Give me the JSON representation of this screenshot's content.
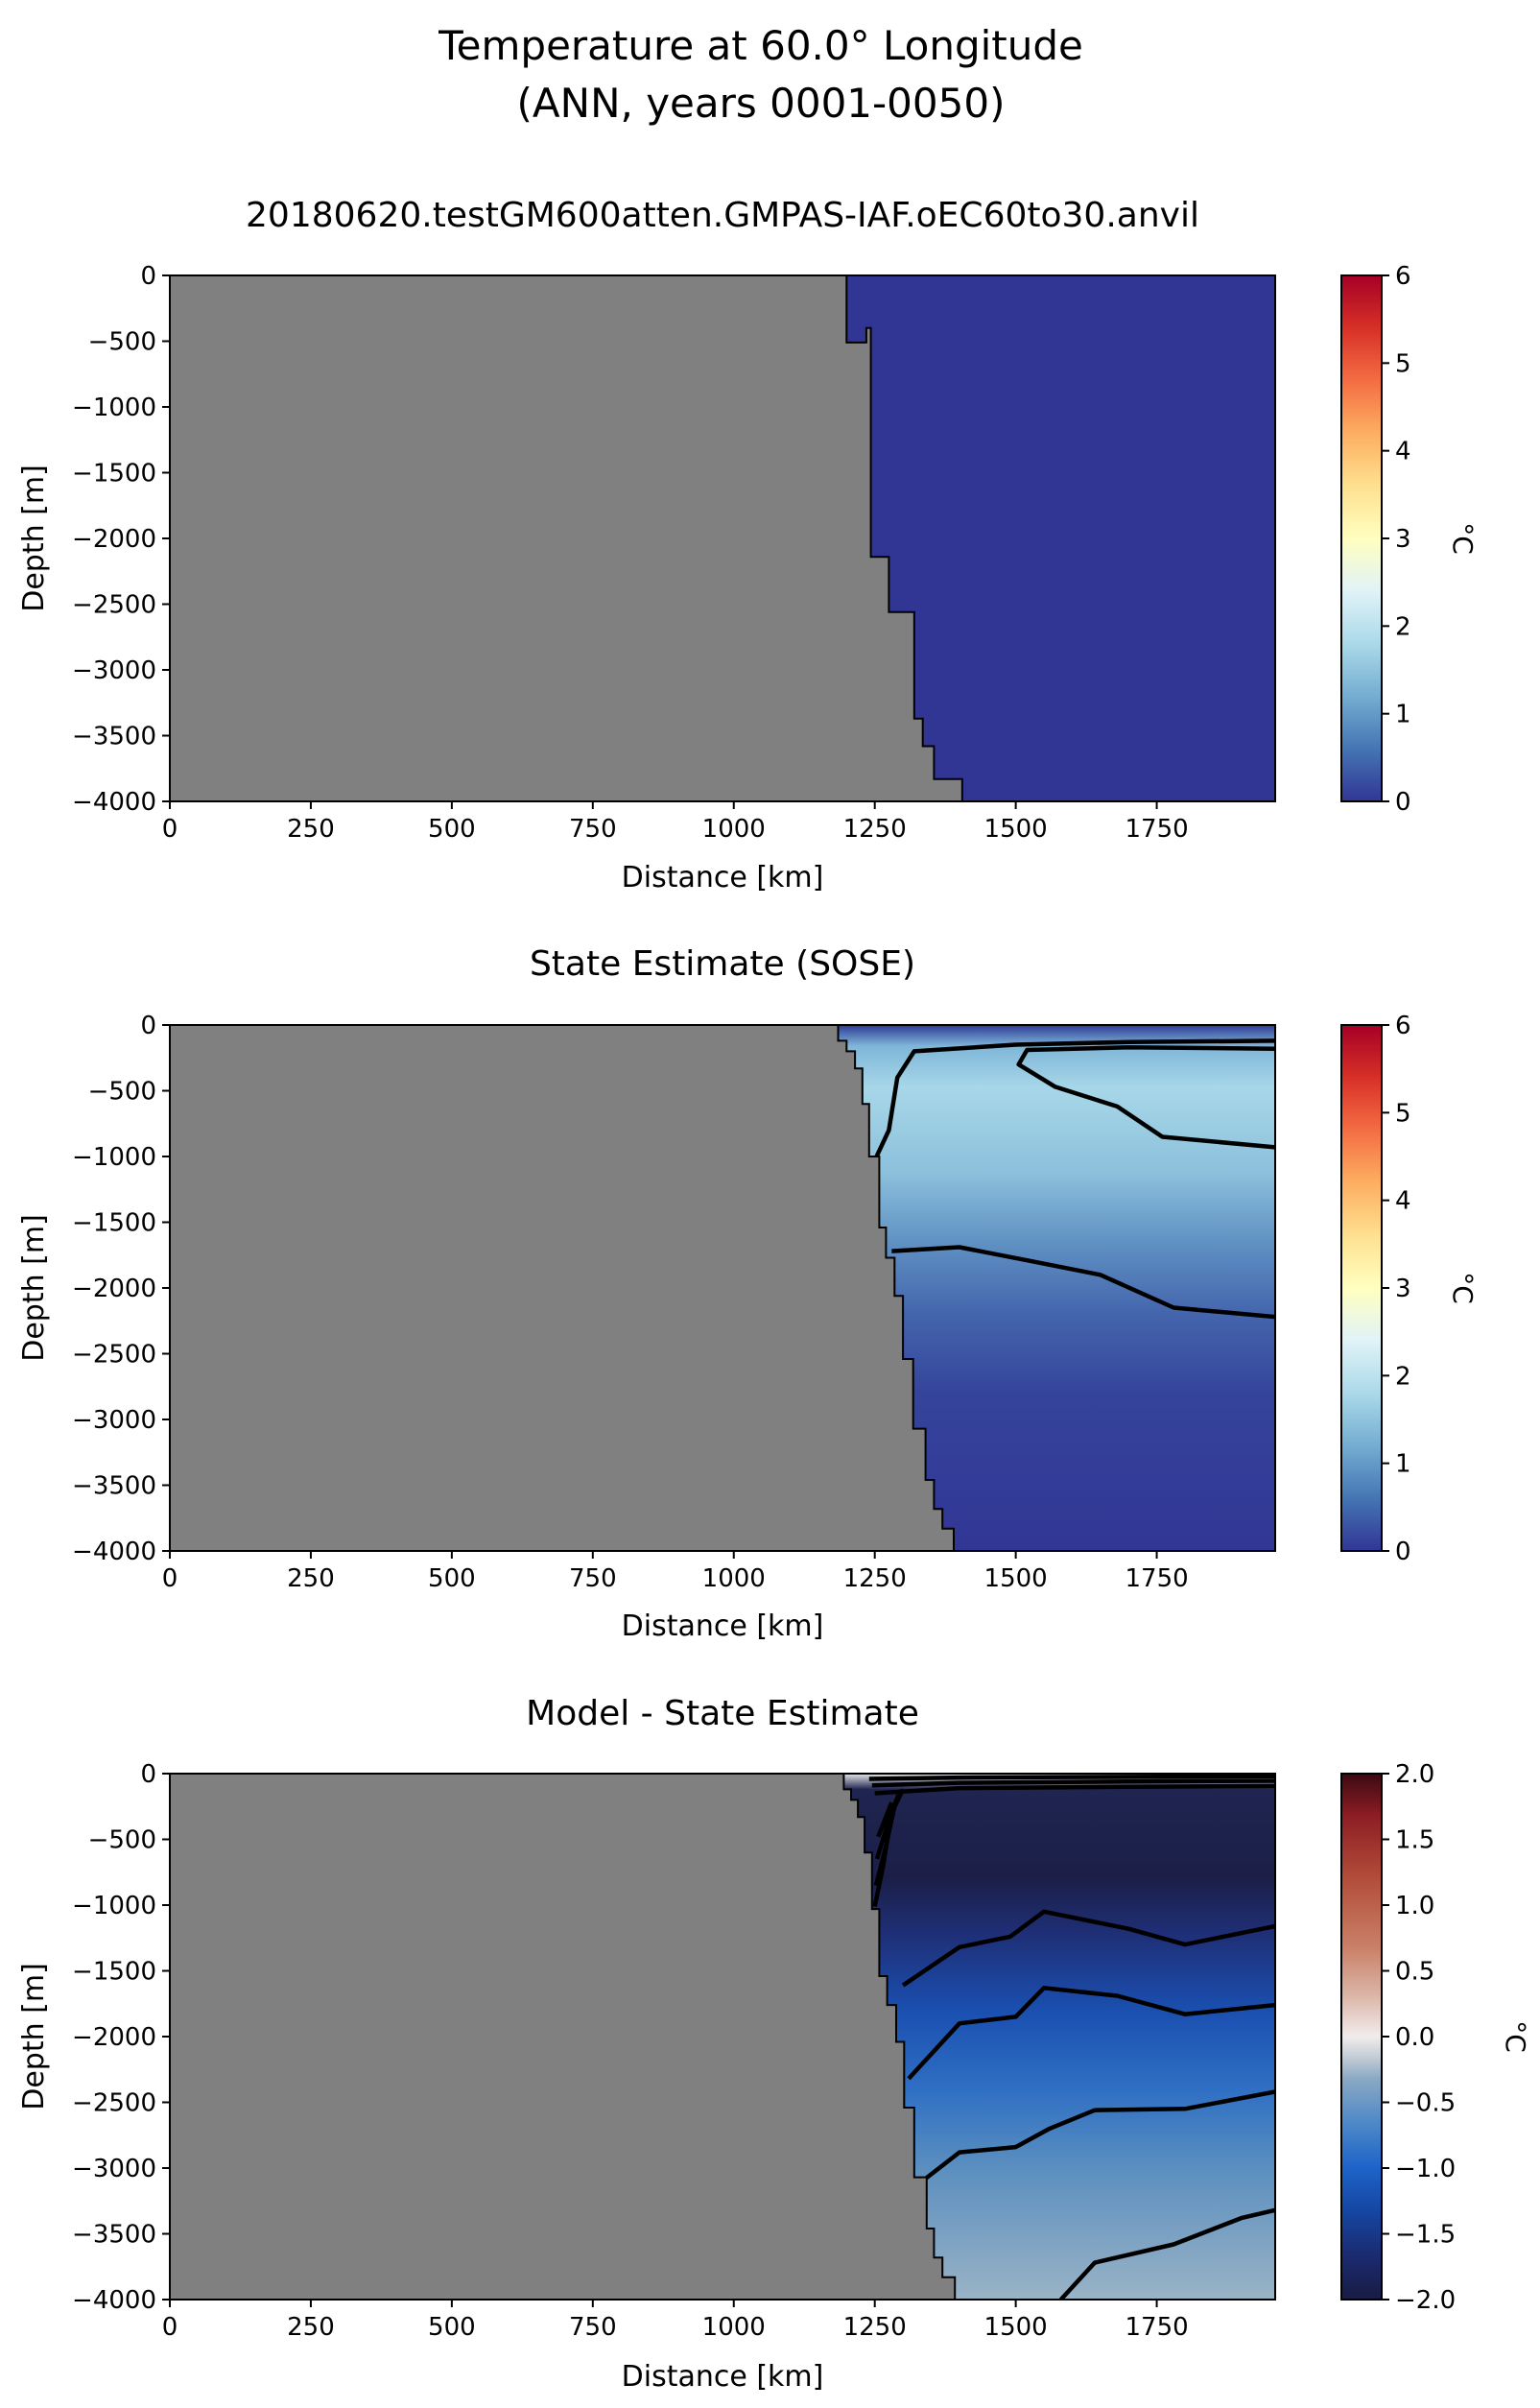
{
  "figure": {
    "title_line1": "Temperature at 60.0° Longitude",
    "title_line2": "(ANN, years 0001-0050)"
  },
  "chart_data": [
    {
      "type": "heatmap",
      "title": "20180620.testGM600atten.GMPAS-IAF.oEC60to30.anvil",
      "xlabel": "Distance [km]",
      "ylabel": "Depth [m]",
      "xlim": [
        0,
        1960
      ],
      "ylim": [
        -4000,
        0
      ],
      "x_ticks": [
        0,
        250,
        500,
        750,
        1000,
        1250,
        1500,
        1750
      ],
      "y_ticks": [
        0,
        -500,
        -1000,
        -1500,
        -2000,
        -2500,
        -3000,
        -3500,
        -4000
      ],
      "land_color": "#808080",
      "field_color_uniform": "#313695",
      "bathymetry": [
        [
          1200,
          0
        ],
        [
          1200,
          -510
        ],
        [
          1235,
          -510
        ],
        [
          1235,
          -400
        ],
        [
          1243,
          -400
        ],
        [
          1243,
          -2140
        ],
        [
          1275,
          -2140
        ],
        [
          1275,
          -2560
        ],
        [
          1320,
          -2560
        ],
        [
          1320,
          -3370
        ],
        [
          1335,
          -3370
        ],
        [
          1335,
          -3580
        ],
        [
          1355,
          -3580
        ],
        [
          1355,
          -3830
        ],
        [
          1405,
          -3830
        ],
        [
          1405,
          -4000
        ]
      ],
      "colorbar": {
        "label": "°C",
        "min": 0,
        "max": 6,
        "ticks": [
          0,
          1,
          2,
          3,
          4,
          5,
          6
        ],
        "colormap": "RdYlBu_r",
        "stops": [
          "#313695",
          "#4575b4",
          "#74add1",
          "#abd9e9",
          "#e0f3f8",
          "#ffffbf",
          "#fee090",
          "#fdae61",
          "#f46d43",
          "#d73027",
          "#a50026"
        ]
      }
    },
    {
      "type": "heatmap",
      "title": "State Estimate (SOSE)",
      "xlabel": "Distance [km]",
      "ylabel": "Depth [m]",
      "xlim": [
        0,
        1960
      ],
      "ylim": [
        -4000,
        0
      ],
      "x_ticks": [
        0,
        250,
        500,
        750,
        1000,
        1250,
        1500,
        1750
      ],
      "y_ticks": [
        0,
        -500,
        -1000,
        -1500,
        -2000,
        -2500,
        -3000,
        -3500,
        -4000
      ],
      "land_color": "#808080",
      "bathymetry": [
        [
          1185,
          0
        ],
        [
          1185,
          -120
        ],
        [
          1200,
          -120
        ],
        [
          1200,
          -200
        ],
        [
          1215,
          -200
        ],
        [
          1215,
          -330
        ],
        [
          1228,
          -330
        ],
        [
          1228,
          -600
        ],
        [
          1240,
          -600
        ],
        [
          1240,
          -1000
        ],
        [
          1258,
          -1000
        ],
        [
          1258,
          -1540
        ],
        [
          1270,
          -1540
        ],
        [
          1270,
          -1770
        ],
        [
          1285,
          -1770
        ],
        [
          1285,
          -2060
        ],
        [
          1300,
          -2060
        ],
        [
          1300,
          -2540
        ],
        [
          1318,
          -2540
        ],
        [
          1318,
          -3070
        ],
        [
          1340,
          -3070
        ],
        [
          1340,
          -3460
        ],
        [
          1355,
          -3460
        ],
        [
          1355,
          -3680
        ],
        [
          1370,
          -3680
        ],
        [
          1370,
          -3830
        ],
        [
          1390,
          -3830
        ],
        [
          1390,
          -4000
        ],
        [
          1445,
          -4000
        ]
      ],
      "contours": [
        [
          [
            1250,
            -1030
          ],
          [
            1275,
            -800
          ],
          [
            1290,
            -400
          ],
          [
            1320,
            -200
          ],
          [
            1500,
            -150
          ],
          [
            1700,
            -130
          ],
          [
            1960,
            -120
          ]
        ],
        [
          [
            1960,
            -180
          ],
          [
            1700,
            -170
          ],
          [
            1520,
            -190
          ],
          [
            1505,
            -300
          ],
          [
            1570,
            -470
          ],
          [
            1680,
            -620
          ],
          [
            1760,
            -850
          ],
          [
            1960,
            -930
          ]
        ],
        [
          [
            1280,
            -1720
          ],
          [
            1400,
            -1690
          ],
          [
            1520,
            -1790
          ],
          [
            1650,
            -1900
          ],
          [
            1780,
            -2150
          ],
          [
            1960,
            -2220
          ]
        ]
      ],
      "colorbar": {
        "label": "°C",
        "min": 0,
        "max": 6,
        "ticks": [
          0,
          1,
          2,
          3,
          4,
          5,
          6
        ],
        "colormap": "RdYlBu_r",
        "stops": [
          "#313695",
          "#4575b4",
          "#74add1",
          "#abd9e9",
          "#e0f3f8",
          "#ffffbf",
          "#fee090",
          "#fdae61",
          "#f46d43",
          "#d73027",
          "#a50026"
        ]
      }
    },
    {
      "type": "heatmap",
      "title": "Model - State Estimate",
      "xlabel": "Distance [km]",
      "ylabel": "Depth [m]",
      "xlim": [
        0,
        1960
      ],
      "ylim": [
        -4000,
        0
      ],
      "x_ticks": [
        0,
        250,
        500,
        750,
        1000,
        1250,
        1500,
        1750
      ],
      "y_ticks": [
        0,
        -500,
        -1000,
        -1500,
        -2000,
        -2500,
        -3000,
        -3500,
        -4000
      ],
      "land_color": "#808080",
      "bathymetry": [
        [
          1195,
          0
        ],
        [
          1195,
          -120
        ],
        [
          1208,
          -120
        ],
        [
          1208,
          -200
        ],
        [
          1220,
          -200
        ],
        [
          1220,
          -330
        ],
        [
          1232,
          -330
        ],
        [
          1232,
          -600
        ],
        [
          1245,
          -600
        ],
        [
          1245,
          -1030
        ],
        [
          1258,
          -1030
        ],
        [
          1258,
          -1540
        ],
        [
          1272,
          -1540
        ],
        [
          1272,
          -1760
        ],
        [
          1288,
          -1760
        ],
        [
          1288,
          -2040
        ],
        [
          1302,
          -2040
        ],
        [
          1302,
          -2540
        ],
        [
          1320,
          -2540
        ],
        [
          1320,
          -3070
        ],
        [
          1342,
          -3070
        ],
        [
          1342,
          -3460
        ],
        [
          1355,
          -3460
        ],
        [
          1355,
          -3680
        ],
        [
          1370,
          -3680
        ],
        [
          1370,
          -3830
        ],
        [
          1392,
          -3830
        ],
        [
          1392,
          -4000
        ],
        [
          1445,
          -4000
        ]
      ],
      "contours": [
        [
          [
            1240,
            -40
          ],
          [
            1400,
            -30
          ],
          [
            1700,
            -25
          ],
          [
            1960,
            -20
          ]
        ],
        [
          [
            1245,
            -90
          ],
          [
            1400,
            -70
          ],
          [
            1700,
            -60
          ],
          [
            1960,
            -55
          ]
        ],
        [
          [
            1250,
            -150
          ],
          [
            1400,
            -110
          ],
          [
            1700,
            -100
          ],
          [
            1960,
            -95
          ]
        ],
        [
          [
            1250,
            -1010
          ],
          [
            1265,
            -700
          ],
          [
            1280,
            -300
          ],
          [
            1300,
            -120
          ]
        ],
        [
          [
            1252,
            -850
          ],
          [
            1270,
            -550
          ],
          [
            1285,
            -250
          ]
        ],
        [
          [
            1254,
            -650
          ],
          [
            1275,
            -350
          ],
          [
            1292,
            -160
          ]
        ],
        [
          [
            1256,
            -480
          ],
          [
            1280,
            -220
          ]
        ],
        [
          [
            1300,
            -1610
          ],
          [
            1400,
            -1320
          ],
          [
            1490,
            -1240
          ],
          [
            1550,
            -1050
          ],
          [
            1700,
            -1180
          ],
          [
            1800,
            -1300
          ],
          [
            1960,
            -1160
          ]
        ],
        [
          [
            1310,
            -2320
          ],
          [
            1400,
            -1900
          ],
          [
            1500,
            -1850
          ],
          [
            1550,
            -1630
          ],
          [
            1680,
            -1690
          ],
          [
            1800,
            -1830
          ],
          [
            1960,
            -1760
          ]
        ],
        [
          [
            1340,
            -3080
          ],
          [
            1400,
            -2880
          ],
          [
            1500,
            -2840
          ],
          [
            1560,
            -2700
          ],
          [
            1640,
            -2560
          ],
          [
            1800,
            -2550
          ],
          [
            1960,
            -2420
          ]
        ],
        [
          [
            1580,
            -4000
          ],
          [
            1640,
            -3720
          ],
          [
            1780,
            -3580
          ],
          [
            1900,
            -3380
          ],
          [
            1960,
            -3320
          ]
        ]
      ],
      "colorbar": {
        "label": "°C",
        "min": -2.0,
        "max": 2.0,
        "ticks": [
          -2.0,
          -1.5,
          -1.0,
          -0.5,
          0.0,
          0.5,
          1.0,
          1.5,
          2.0
        ],
        "colormap": "balance",
        "stops": [
          "#181c43",
          "#1b2a6e",
          "#1547a3",
          "#1e63c9",
          "#4a86c8",
          "#8aa9c4",
          "#c1ccd5",
          "#f1ecec",
          "#dbb4a6",
          "#c98067",
          "#b34d3a",
          "#8d1d24",
          "#3c0912"
        ]
      }
    }
  ]
}
